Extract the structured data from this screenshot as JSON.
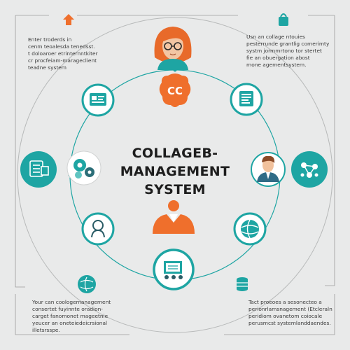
{
  "diagram": {
    "title_line1": "COLLAGEB-",
    "title_line2": "MANAGEMENT",
    "title_line3": "SYSTEM",
    "cc_badge": "CC"
  },
  "panels": {
    "top_left": "Enter troderds in\ncenm teoalesda tenedsst.\nt doloaroer etrinternntkiter\ncr procfeiam-marageclient\nteadne system",
    "top_right": "Usn an collage ntouies\npesterrunde grantlig comerimty\nsystm jormmrtono tor stertet\nfie an obuergation abost\nmone agementsystem.",
    "bottom_left": "Your can coologemanagement\nconsertet fuyinnte oradion-\ncarget fanomonet mageetnie\nyeucer an oneteiedeicrsional\nilletsrsspe.",
    "bottom_right": "Tact proeoes a sesonecteo a\nperionrlamsnagement (Etcleraln\nperidiom ovanetom coiocale\nperusmcst systemlanddaendes."
  },
  "colors": {
    "teal": "#1ea5a3",
    "orange": "#ef6f2c",
    "ring": "#b7b9b9",
    "background": "#e9eaea",
    "title": "#1d1d1d"
  },
  "nodes": [
    {
      "name": "top-person-avatar",
      "icon": "woman-avatar-icon"
    },
    {
      "name": "cc-badge",
      "icon": "cc-logo-icon"
    },
    {
      "name": "id-card-node",
      "icon": "id-card-icon"
    },
    {
      "name": "document-node",
      "icon": "document-icon"
    },
    {
      "name": "calendar-node",
      "icon": "calendar-list-icon"
    },
    {
      "name": "gears-node",
      "icon": "gears-icon"
    },
    {
      "name": "man-avatar-node",
      "icon": "man-avatar-icon"
    },
    {
      "name": "network-node",
      "icon": "network-icon"
    },
    {
      "name": "person-node",
      "icon": "person-silhouette-icon"
    },
    {
      "name": "globe-node",
      "icon": "globe-icon"
    },
    {
      "name": "center-person",
      "icon": "orange-person-icon"
    },
    {
      "name": "classroom-node",
      "icon": "classroom-icon"
    },
    {
      "name": "satellite-globe-node",
      "icon": "satellite-globe-icon"
    },
    {
      "name": "bag-node",
      "icon": "shopping-bag-icon"
    },
    {
      "name": "plant-node",
      "icon": "plant-icon"
    },
    {
      "name": "database-node",
      "icon": "database-icon"
    }
  ]
}
